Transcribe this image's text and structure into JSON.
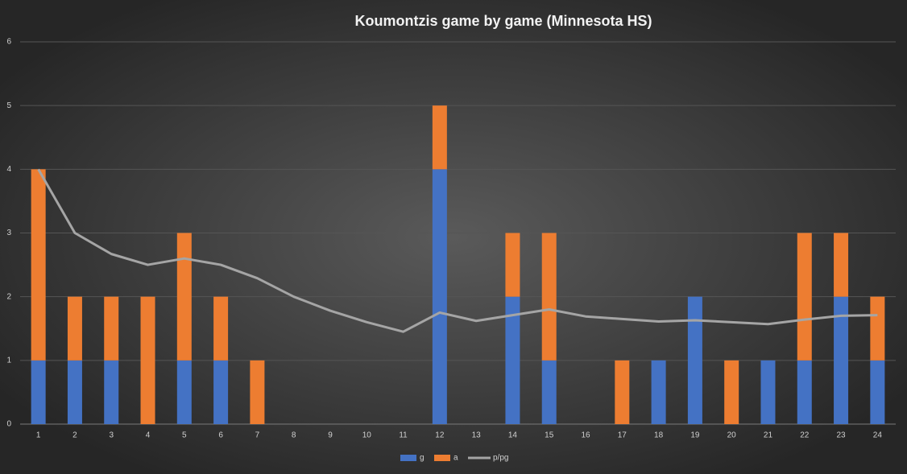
{
  "chart_data": {
    "type": "bar",
    "stacked": true,
    "title": "Koumontzis  game by game (Minnesota  HS)",
    "categories": [
      "1",
      "2",
      "3",
      "4",
      "5",
      "6",
      "7",
      "8",
      "9",
      "10",
      "11",
      "12",
      "13",
      "14",
      "15",
      "16",
      "17",
      "18",
      "19",
      "20",
      "21",
      "22",
      "23",
      "24"
    ],
    "series": [
      {
        "name": "g",
        "type": "bar",
        "color": "#4472c4",
        "values": [
          1,
          1,
          1,
          0,
          1,
          1,
          0,
          0,
          0,
          0,
          0,
          4,
          0,
          2,
          1,
          0,
          0,
          1,
          2,
          0,
          1,
          1,
          2,
          1
        ]
      },
      {
        "name": "a",
        "type": "bar",
        "color": "#ed7d31",
        "values": [
          3,
          1,
          1,
          2,
          2,
          1,
          1,
          0,
          0,
          0,
          0,
          1,
          0,
          1,
          2,
          0,
          1,
          0,
          0,
          1,
          0,
          2,
          1,
          1
        ]
      },
      {
        "name": "p/pg",
        "type": "line",
        "color": "#a5a5a5",
        "values": [
          4,
          3,
          2.67,
          2.5,
          2.6,
          2.5,
          2.29,
          2,
          1.78,
          1.6,
          1.45,
          1.75,
          1.62,
          1.71,
          1.8,
          1.69,
          1.65,
          1.61,
          1.63,
          1.6,
          1.57,
          1.64,
          1.7,
          1.71
        ]
      }
    ],
    "ylim": [
      0,
      6
    ],
    "yticks": [
      0,
      1,
      2,
      3,
      4,
      5,
      6
    ],
    "grid": true,
    "legend": "bottom"
  }
}
